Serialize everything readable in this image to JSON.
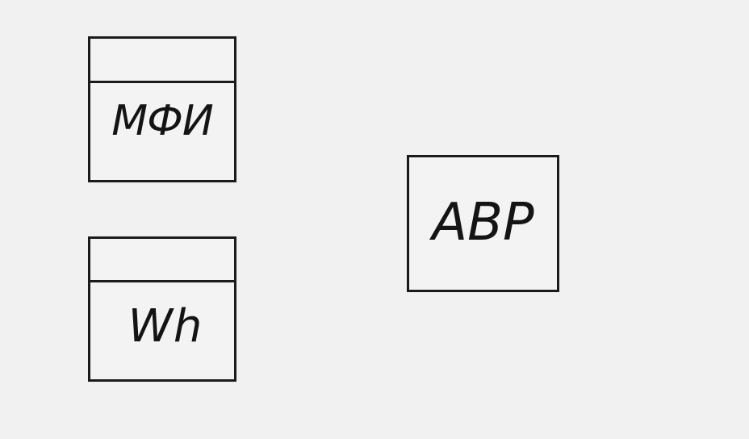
{
  "symbols": {
    "mfi": {
      "label": "МФИ"
    },
    "wh": {
      "label": "Wh"
    },
    "avr": {
      "label": "АВР"
    }
  },
  "colors": {
    "stroke": "#1b1b1b",
    "background": "#f1f1f1"
  }
}
